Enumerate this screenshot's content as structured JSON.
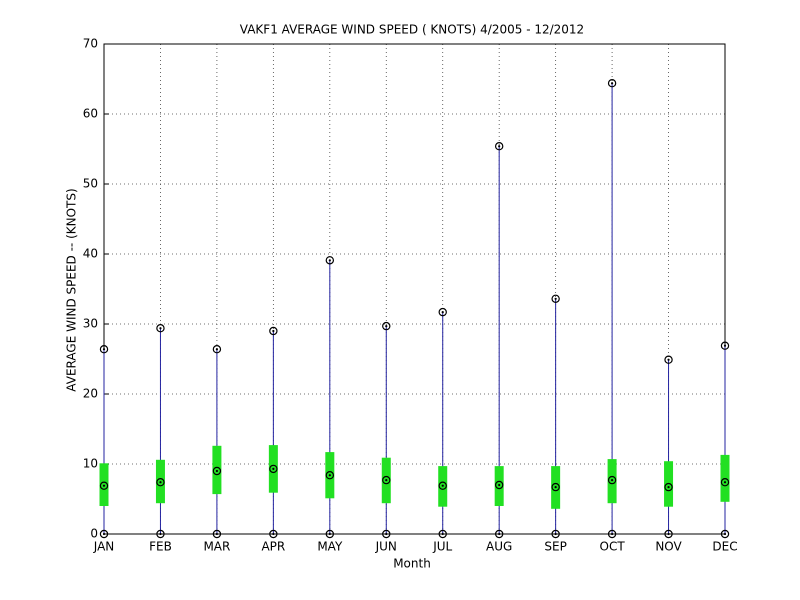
{
  "chart_data": {
    "type": "box",
    "title": "VAKF1  AVERAGE WIND SPEED ( KNOTS) 4/2005 - 12/2012",
    "x_label": "Month",
    "y_label": "AVERAGE WIND SPEED -- (KNOTS)",
    "categories": [
      "JAN",
      "FEB",
      "MAR",
      "APR",
      "MAY",
      "JUN",
      "JUL",
      "AUG",
      "SEP",
      "OCT",
      "NOV",
      "DEC"
    ],
    "max": [
      26.4,
      29.4,
      26.4,
      29.0,
      39.1,
      29.7,
      31.7,
      55.4,
      33.6,
      64.4,
      24.9,
      26.9
    ],
    "box_high": [
      10.1,
      10.6,
      12.6,
      12.7,
      11.7,
      10.9,
      9.7,
      9.7,
      9.7,
      10.7,
      10.4,
      11.3
    ],
    "mean": [
      6.9,
      7.4,
      9.0,
      9.3,
      8.4,
      7.7,
      6.9,
      7.0,
      6.7,
      7.7,
      6.7,
      7.4
    ],
    "box_low": [
      4.0,
      4.4,
      5.7,
      5.9,
      5.1,
      4.4,
      3.9,
      4.0,
      3.6,
      4.4,
      3.9,
      4.6
    ],
    "min": [
      0,
      0,
      0,
      0,
      0,
      0,
      0,
      0,
      0,
      0,
      0,
      0
    ],
    "ylim": [
      0,
      70
    ],
    "yticks": [
      0,
      10,
      20,
      30,
      40,
      50,
      60,
      70
    ],
    "grid": true,
    "whisker_color": "#2323a0",
    "box_color": "#22e022",
    "marker_color": "#000000"
  }
}
